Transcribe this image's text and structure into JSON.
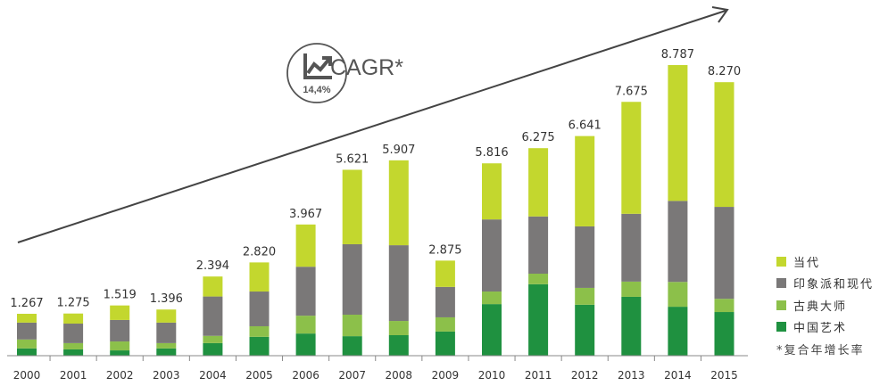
{
  "chart_data": {
    "type": "bar",
    "stacked": true,
    "categories": [
      "2000",
      "2001",
      "2002",
      "2003",
      "2004",
      "2005",
      "2006",
      "2007",
      "2008",
      "2009",
      "2010",
      "2011",
      "2012",
      "2013",
      "2014",
      "2015"
    ],
    "totals_labels": [
      "1.267",
      "1.275",
      "1.519",
      "1.396",
      "2.394",
      "2.820",
      "3.967",
      "5.621",
      "5.907",
      "2.875",
      "5.816",
      "6.275",
      "6.641",
      "7.675",
      "8.787",
      "8.270"
    ],
    "totals": [
      1.267,
      1.275,
      1.519,
      1.396,
      2.394,
      2.82,
      3.967,
      5.621,
      5.907,
      2.875,
      5.816,
      6.275,
      6.641,
      7.675,
      8.787,
      8.27
    ],
    "series": [
      {
        "name": "中国艺术",
        "color": "#1f9140",
        "values": [
          0.22,
          0.19,
          0.16,
          0.22,
          0.38,
          0.57,
          0.67,
          0.59,
          0.62,
          0.73,
          1.56,
          2.16,
          1.54,
          1.78,
          1.48,
          1.32
        ]
      },
      {
        "name": "古典大师",
        "color": "#8cc04a",
        "values": [
          0.27,
          0.19,
          0.27,
          0.16,
          0.22,
          0.32,
          0.54,
          0.65,
          0.43,
          0.43,
          0.38,
          0.32,
          0.51,
          0.46,
          0.75,
          0.4
        ]
      },
      {
        "name": "印象派和现代",
        "color": "#7a7878",
        "values": [
          0.51,
          0.59,
          0.65,
          0.62,
          1.19,
          1.05,
          1.48,
          2.13,
          2.29,
          0.92,
          2.18,
          1.73,
          1.86,
          2.05,
          2.45,
          2.78
        ]
      },
      {
        "name": "当代",
        "color": "#c3d72e",
        "values": [
          0.27,
          0.3,
          0.44,
          0.4,
          0.6,
          0.88,
          1.28,
          2.25,
          2.57,
          0.8,
          1.7,
          2.06,
          2.73,
          3.39,
          4.11,
          3.77
        ]
      }
    ],
    "ylim": [
      0,
      10.5
    ],
    "grid": false,
    "legend_placement": "right-bottom",
    "legend_order": [
      "当代",
      "印象派和现代",
      "古典大师",
      "中国艺术"
    ],
    "footnote": "*复合年增长率",
    "annotation": {
      "label": "CAGR*",
      "value": "14,4%",
      "icon": "trending-up-icon",
      "trend_arrow": true
    }
  }
}
